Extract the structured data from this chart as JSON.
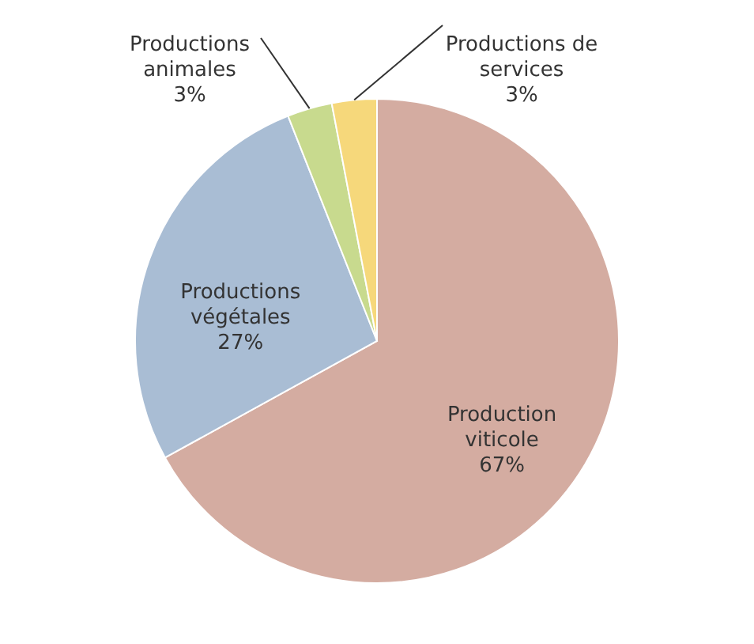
{
  "chart_data": {
    "type": "pie",
    "categories": [
      "Production viticole",
      "Productions végétales",
      "Productions animales",
      "Productions de services"
    ],
    "values": [
      67,
      27,
      3,
      3
    ],
    "value_labels": [
      "67%",
      "27%",
      "3%",
      "3%"
    ],
    "colors": [
      "#d4aca1",
      "#a9bdd4",
      "#c8da8e",
      "#f6d87b"
    ]
  }
}
